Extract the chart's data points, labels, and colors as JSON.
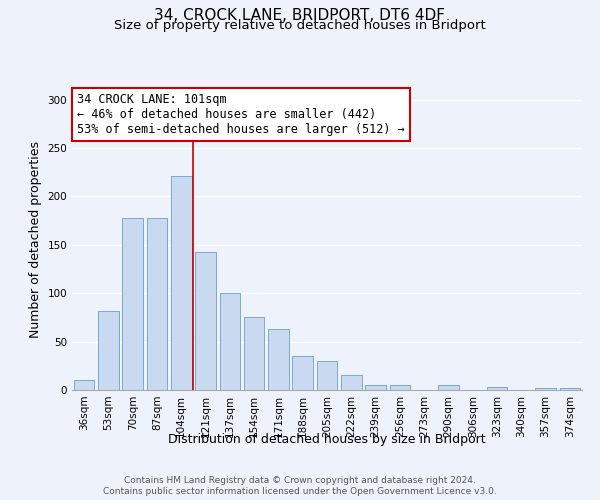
{
  "title": "34, CROCK LANE, BRIDPORT, DT6 4DF",
  "subtitle": "Size of property relative to detached houses in Bridport",
  "xlabel": "Distribution of detached houses by size in Bridport",
  "ylabel": "Number of detached properties",
  "bar_labels": [
    "36sqm",
    "53sqm",
    "70sqm",
    "87sqm",
    "104sqm",
    "121sqm",
    "137sqm",
    "154sqm",
    "171sqm",
    "188sqm",
    "205sqm",
    "222sqm",
    "239sqm",
    "256sqm",
    "273sqm",
    "290sqm",
    "306sqm",
    "323sqm",
    "340sqm",
    "357sqm",
    "374sqm"
  ],
  "bar_values": [
    10,
    82,
    178,
    178,
    221,
    143,
    100,
    75,
    63,
    35,
    30,
    15,
    5,
    5,
    0,
    5,
    0,
    3,
    0,
    2,
    2
  ],
  "bar_color": "#c9d9f0",
  "bar_edge_color": "#7aa8d4",
  "ylim": [
    0,
    310
  ],
  "yticks": [
    0,
    50,
    100,
    150,
    200,
    250,
    300
  ],
  "red_line_x": 4.5,
  "annotation_title": "34 CROCK LANE: 101sqm",
  "annotation_line1": "← 46% of detached houses are smaller (442)",
  "annotation_line2": "53% of semi-detached houses are larger (512) →",
  "annotation_box_color": "#ffffff",
  "annotation_box_edge_color": "#cc0000",
  "footer1": "Contains HM Land Registry data © Crown copyright and database right 2024.",
  "footer2": "Contains public sector information licensed under the Open Government Licence v3.0.",
  "background_color": "#eef2fb",
  "grid_color": "#ffffff",
  "title_fontsize": 11,
  "subtitle_fontsize": 9.5,
  "axis_label_fontsize": 9,
  "tick_fontsize": 7.5,
  "footer_fontsize": 6.5,
  "annotation_fontsize": 8.5
}
